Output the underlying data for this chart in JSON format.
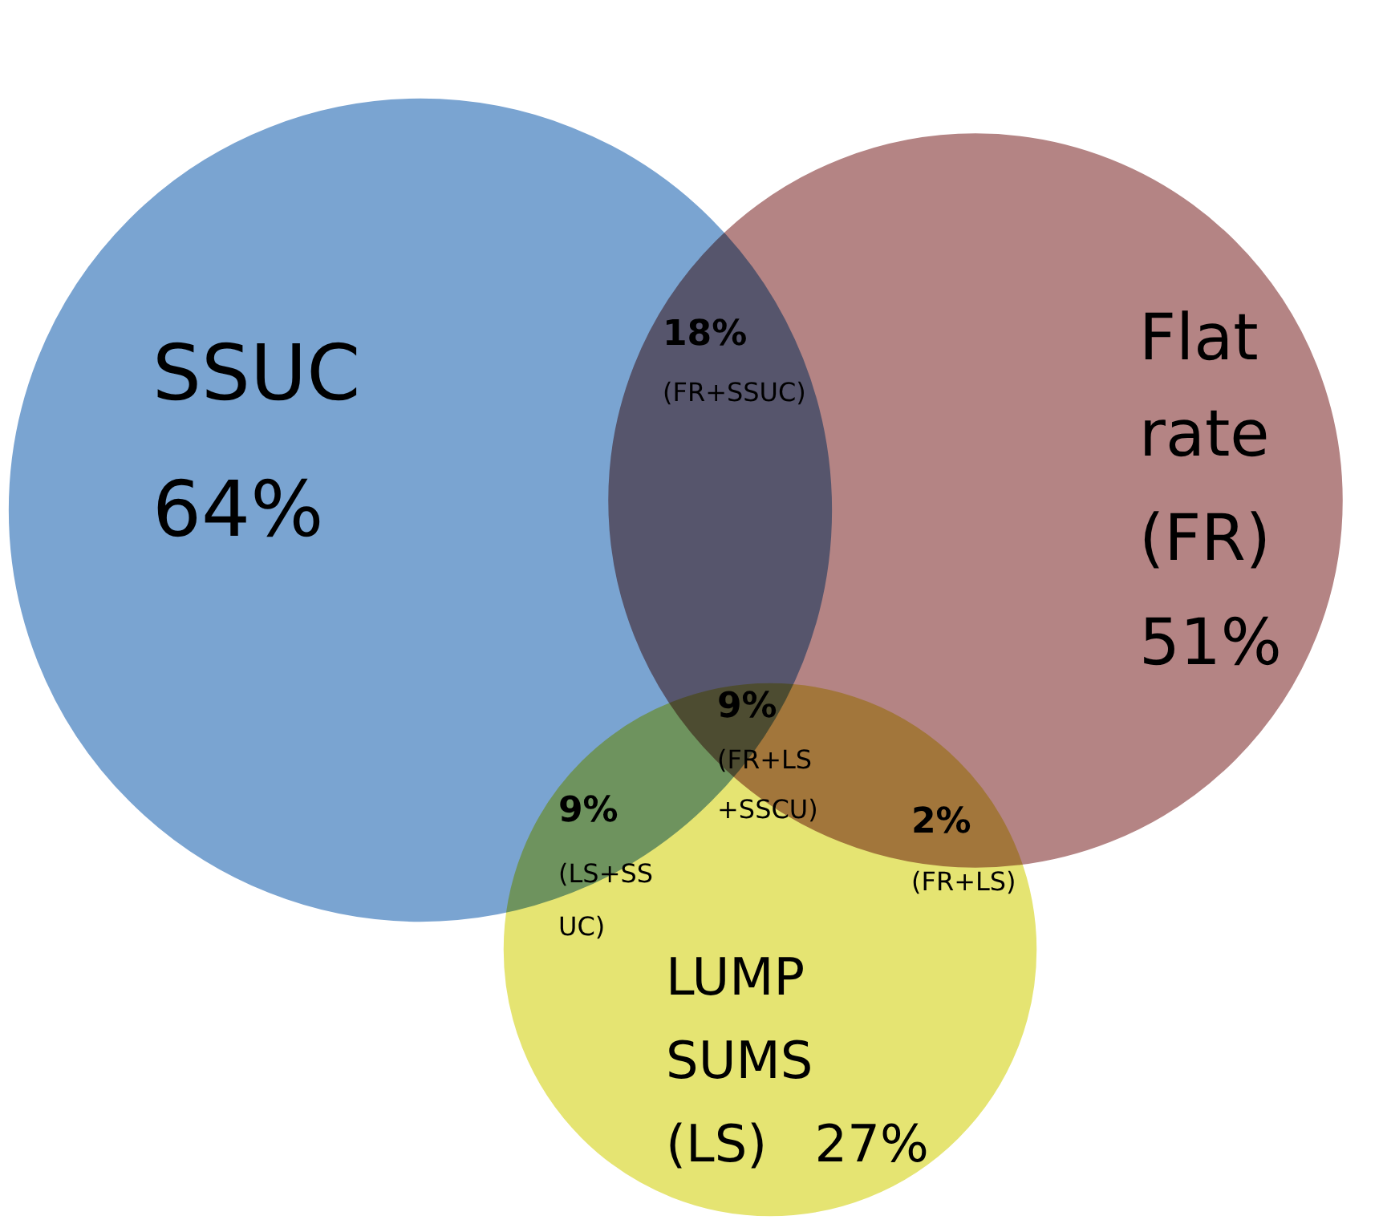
{
  "chart_data": {
    "type": "other",
    "categories": [
      "SSUC",
      "Flat rate (FR)",
      "LUMP SUMS (LS)",
      "(FR+SSUC)",
      "(FR+LS +SSCU)",
      "(LS+SS UC)",
      "(FR+LS)"
    ],
    "values": [
      64,
      51,
      27,
      18,
      9,
      9,
      2
    ],
    "value_labels": [
      "64%",
      "51%",
      "27%",
      "18%",
      "9%",
      "9%",
      "2%"
    ],
    "colors": [
      "#739fcf",
      "#b07d7d",
      "#e4e36a",
      null,
      null,
      null,
      null
    ]
  }
}
